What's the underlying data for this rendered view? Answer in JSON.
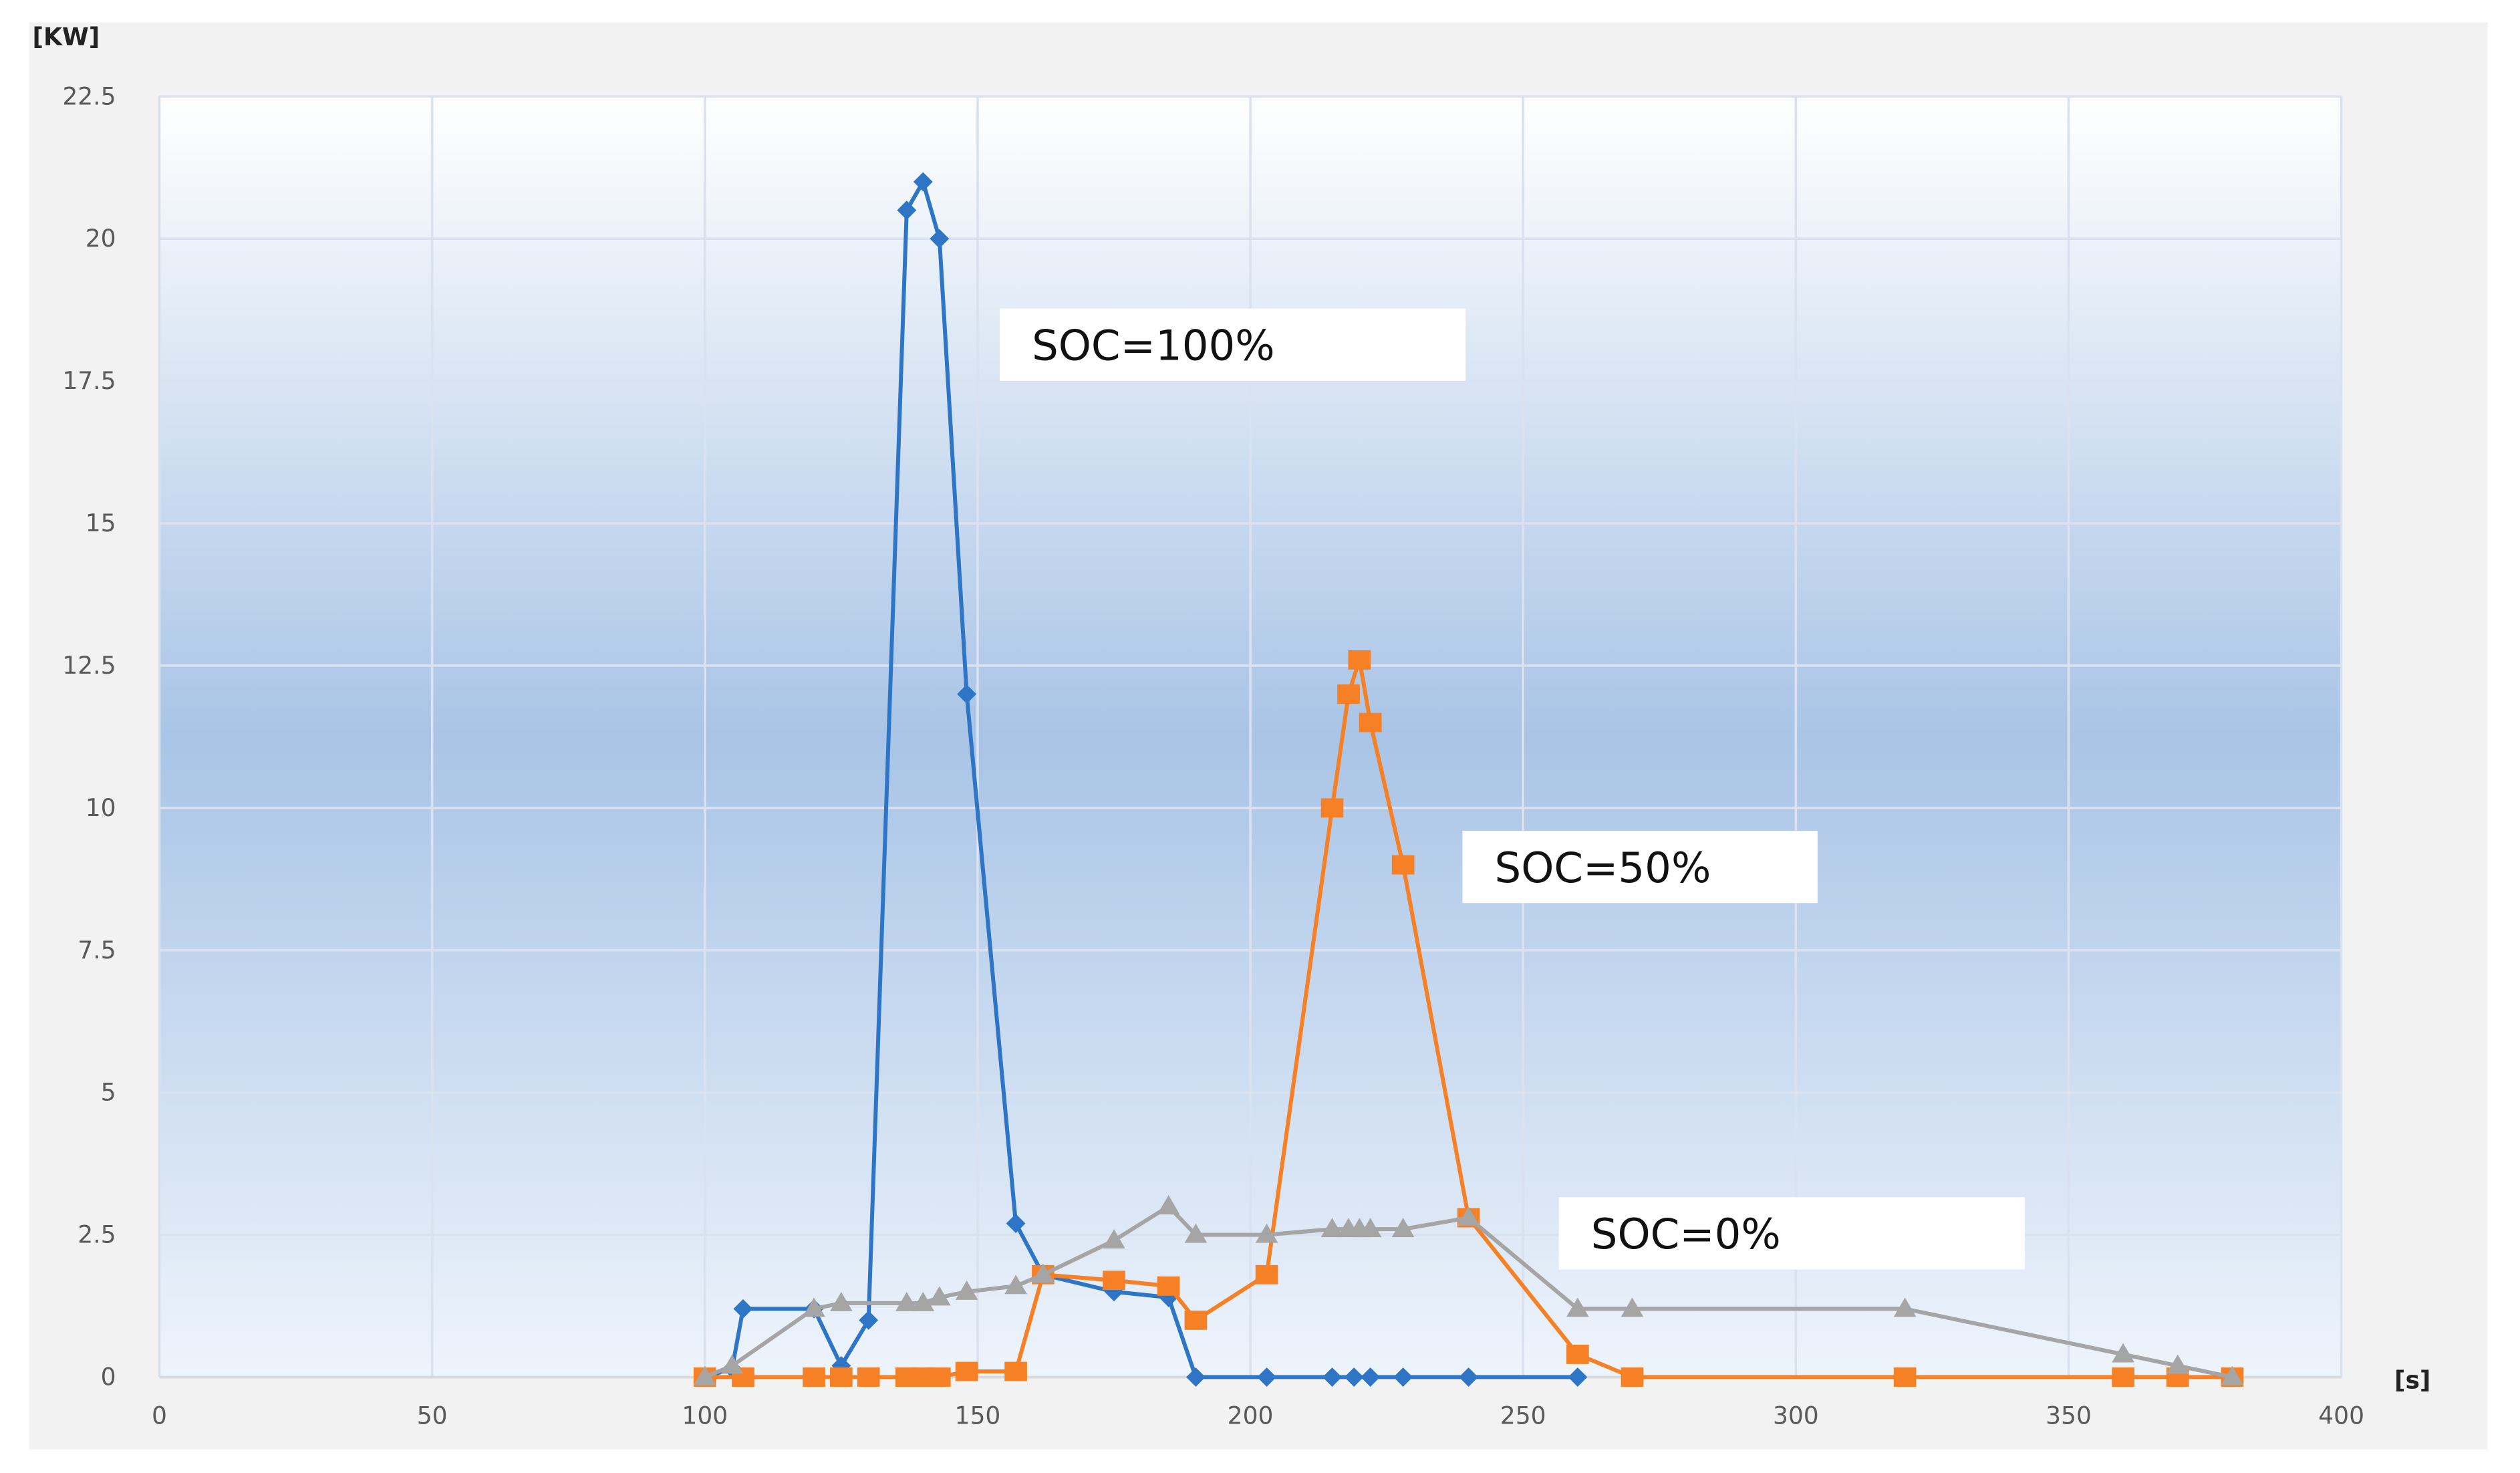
{
  "chart_data": {
    "type": "line",
    "y_label": "[KW]",
    "x_label": "[s]",
    "xlim": [
      0,
      400
    ],
    "xticks": [
      0,
      50,
      100,
      150,
      200,
      250,
      300,
      350,
      400
    ],
    "ylim": [
      0,
      22.5
    ],
    "yticks": [
      0,
      2.5,
      5,
      7.5,
      10,
      12.5,
      15,
      17.5,
      20,
      22.5
    ],
    "grid": true,
    "series": [
      {
        "name": "SOC=100%",
        "color": "#2e75c6",
        "marker": "diamond",
        "x": [
          100,
          105,
          107,
          120,
          125,
          130,
          137,
          140,
          143,
          148,
          157,
          162,
          175,
          185,
          190,
          203,
          215,
          219,
          222,
          228,
          240,
          260
        ],
        "values": [
          0,
          0.15,
          1.2,
          1.2,
          0.2,
          1,
          20.5,
          21,
          20,
          12,
          2.7,
          1.8,
          1.5,
          1.4,
          0,
          0,
          0,
          0,
          0,
          0,
          0,
          0
        ]
      },
      {
        "name": "SOC=50%",
        "color": "#f58025",
        "marker": "square",
        "x": [
          100,
          107,
          120,
          125,
          130,
          137,
          140,
          143,
          148,
          157,
          162,
          175,
          185,
          190,
          203,
          215,
          218,
          220,
          222,
          228,
          240,
          260,
          270,
          320,
          360,
          370,
          380
        ],
        "values": [
          0,
          0,
          0,
          0,
          0,
          0,
          0,
          0,
          0.1,
          0.1,
          1.8,
          1.7,
          1.6,
          1.0,
          1.8,
          10,
          12,
          12.6,
          11.5,
          9,
          2.8,
          0.4,
          0,
          0,
          0,
          0,
          0
        ]
      },
      {
        "name": "SOC=0%",
        "color": "#a5a5a5",
        "marker": "triangle",
        "x": [
          100,
          105,
          120,
          125,
          137,
          140,
          143,
          148,
          157,
          162,
          175,
          185,
          190,
          203,
          215,
          218,
          220,
          222,
          228,
          240,
          260,
          270,
          320,
          360,
          370,
          380
        ],
        "values": [
          0,
          0.2,
          1.2,
          1.3,
          1.3,
          1.3,
          1.4,
          1.5,
          1.6,
          1.8,
          2.4,
          3.0,
          2.5,
          2.5,
          2.6,
          2.6,
          2.6,
          2.6,
          2.6,
          2.8,
          1.2,
          1.2,
          1.2,
          0.4,
          0.2,
          0
        ]
      }
    ]
  }
}
